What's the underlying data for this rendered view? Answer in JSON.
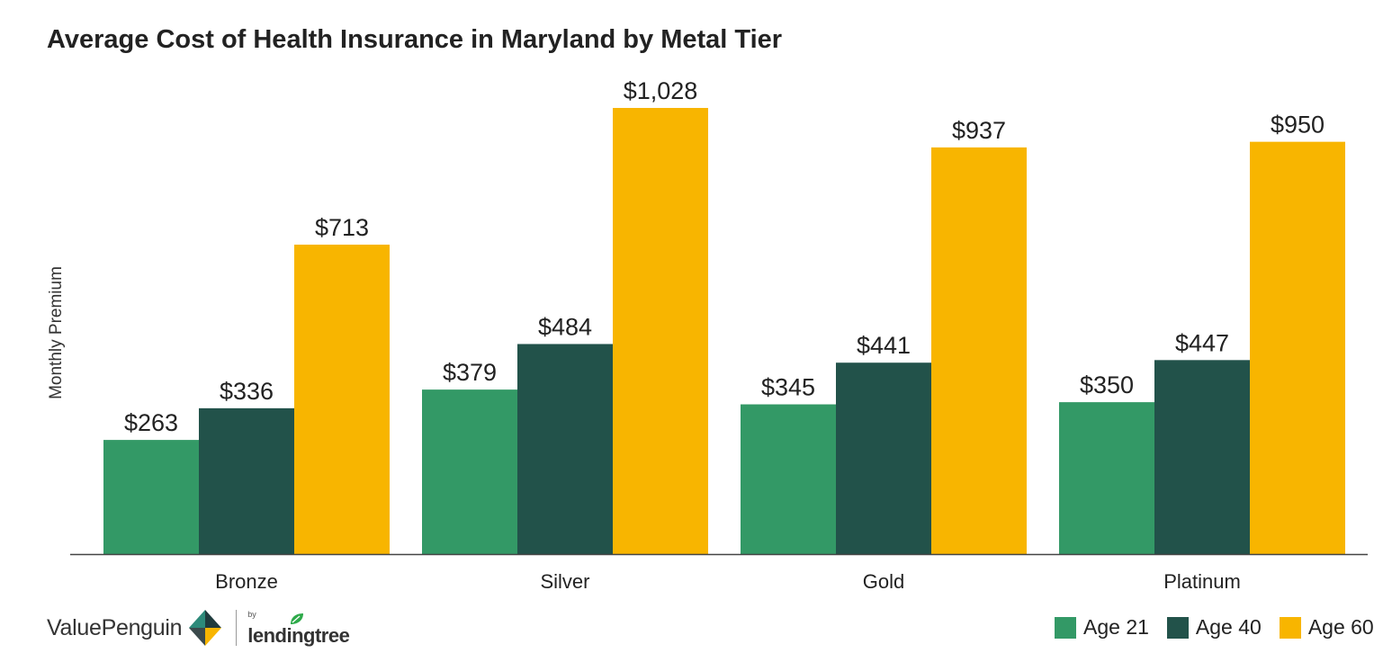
{
  "chart_data": {
    "type": "bar",
    "title": "Average Cost of Health Insurance in Maryland by Metal Tier",
    "xlabel": "",
    "ylabel": "Monthly Premium",
    "categories": [
      "Bronze",
      "Silver",
      "Gold",
      "Platinum"
    ],
    "series": [
      {
        "name": "Age 21",
        "color": "#339966",
        "values": [
          263,
          379,
          345,
          350
        ],
        "labels": [
          "$263",
          "$379",
          "$345",
          "$350"
        ]
      },
      {
        "name": "Age 40",
        "color": "#22524A",
        "values": [
          336,
          484,
          441,
          447
        ],
        "labels": [
          "$336",
          "$484",
          "$441",
          "$447"
        ]
      },
      {
        "name": "Age 60",
        "color": "#F8B500",
        "values": [
          713,
          1028,
          937,
          950
        ],
        "labels": [
          "$713",
          "$1,028",
          "$937",
          "$950"
        ]
      }
    ],
    "ylim": [
      0,
      1028
    ],
    "grid": false,
    "legend_position": "bottom-right"
  },
  "branding": {
    "brand_name": "ValuePenguin",
    "partner_by": "by",
    "partner_name": "lendingtree",
    "logo_colors": {
      "dark": "#1F3B3D",
      "teal": "#2D8A7A",
      "gold": "#F8B500",
      "leaf": "#2EAA4A"
    }
  }
}
